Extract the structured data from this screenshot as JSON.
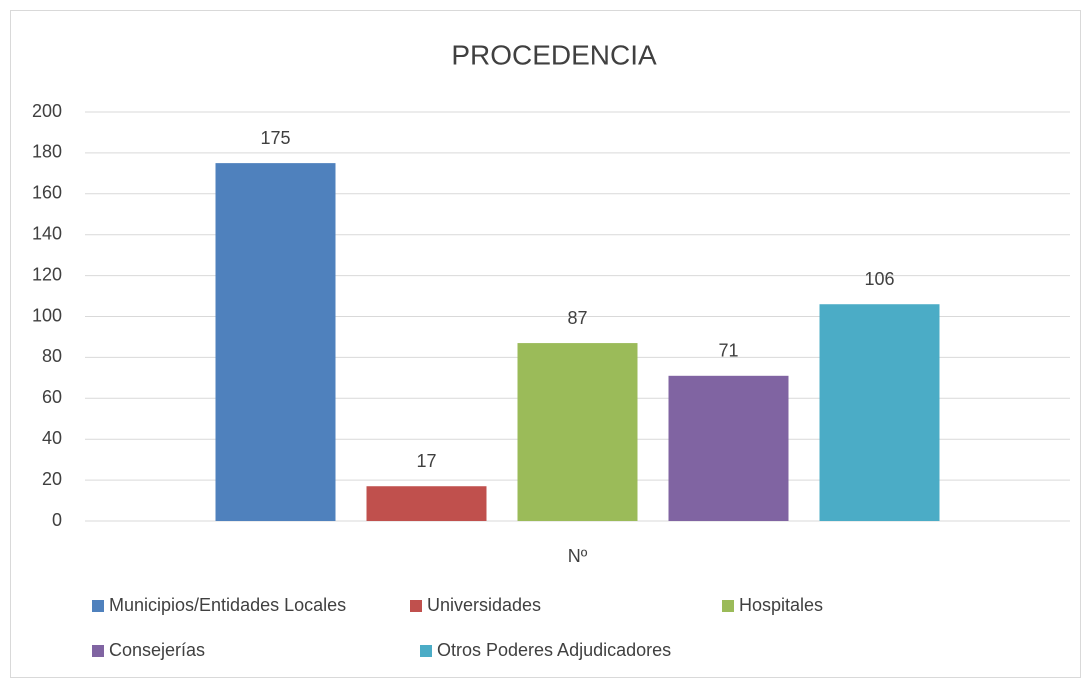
{
  "chart_data": {
    "type": "bar",
    "title": "PROCEDENCIA",
    "categories": [
      "Nº"
    ],
    "series": [
      {
        "name": "Municipios/Entidades Locales",
        "color": "#4f81bd",
        "values": [
          175
        ]
      },
      {
        "name": "Universidades",
        "color": "#c0504d",
        "values": [
          17
        ]
      },
      {
        "name": "Hospitales",
        "color": "#9bbb59",
        "values": [
          87
        ]
      },
      {
        "name": "Consejerías",
        "color": "#8064a2",
        "values": [
          71
        ]
      },
      {
        "name": "Otros Poderes Adjudicadores",
        "color": "#4bacc6",
        "values": [
          106
        ]
      }
    ],
    "ylim": [
      0,
      200
    ],
    "yticks": [
      0,
      20,
      40,
      60,
      80,
      100,
      120,
      140,
      160,
      180,
      200
    ],
    "grid": true,
    "legend": "bottom"
  }
}
